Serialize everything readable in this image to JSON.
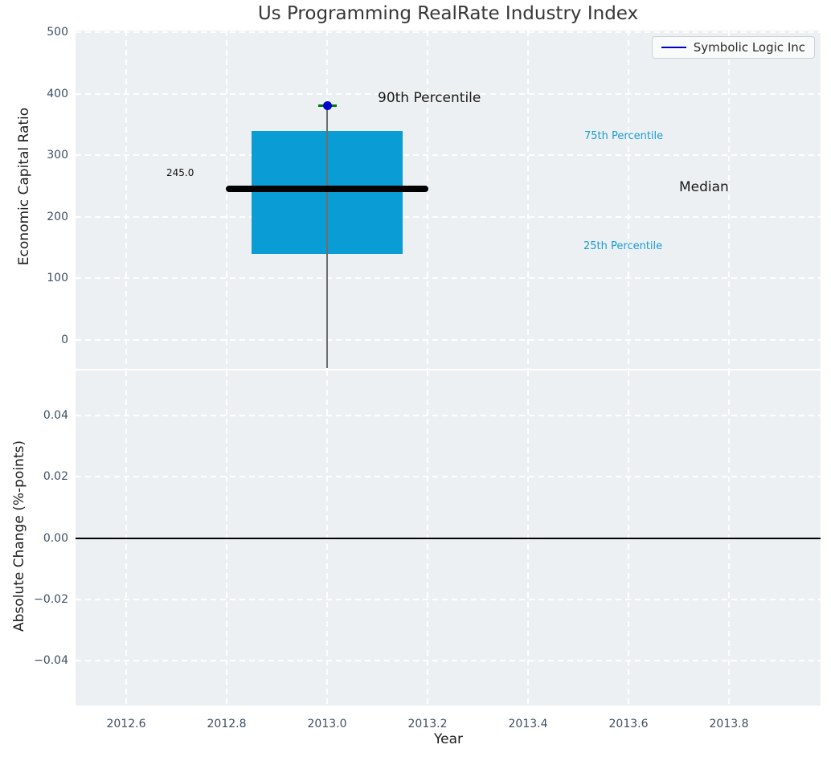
{
  "title": "Us Programming RealRate Industry Index",
  "legend": {
    "label": "Symbolic Logic Inc",
    "line_color": "#0000cc"
  },
  "top_axes": {
    "ylabel": "Economic Capital Ratio",
    "yticks": [
      {
        "label": "500",
        "value": 500
      },
      {
        "label": "400",
        "value": 400
      },
      {
        "label": "300",
        "value": 300
      },
      {
        "label": "200",
        "value": 200
      },
      {
        "label": "100",
        "value": 100
      },
      {
        "label": "0",
        "value": 0
      }
    ],
    "annotations": {
      "p90": "90th Percentile",
      "p75": "75th Percentile",
      "median": "Median",
      "p25": "25th Percentile",
      "median_value": "245.0"
    }
  },
  "bottom_axes": {
    "ylabel": "Absolute Change (%-points)",
    "yticks": [
      {
        "label": "0.04",
        "value": 0.04
      },
      {
        "label": "0.02",
        "value": 0.02
      },
      {
        "label": "0.00",
        "value": 0.0
      },
      {
        "label": "−0.02",
        "value": -0.02
      },
      {
        "label": "−0.04",
        "value": -0.04
      }
    ]
  },
  "x_axis": {
    "label": "Year",
    "ticks": [
      {
        "label": "2012.6",
        "value": 2012.6
      },
      {
        "label": "2012.8",
        "value": 2012.8
      },
      {
        "label": "2013.0",
        "value": 2013.0
      },
      {
        "label": "2013.2",
        "value": 2013.2
      },
      {
        "label": "2013.4",
        "value": 2013.4
      },
      {
        "label": "2013.6",
        "value": 2013.6
      },
      {
        "label": "2013.8",
        "value": 2013.8
      }
    ]
  },
  "colors": {
    "plot_bg": "#edf0f2",
    "grid": "#ffffff",
    "box_fill": "#0a9dd5",
    "percentile_text": "#1a9cd5",
    "series_line": "#0000cc",
    "p90_crossbar": "#007a00",
    "whisker": "#6e6e6e",
    "median_line": "#000000",
    "tick_text": "#3e4e63"
  },
  "chart_data": {
    "type": "box",
    "title": "Us Programming RealRate Industry Index",
    "series": [
      {
        "name": "Symbolic Logic Inc",
        "x": 2013.0,
        "p25": 140,
        "median": 245,
        "p75": 339,
        "p90": 381,
        "median_label": "245.0"
      }
    ],
    "top_panel": {
      "ylabel": "Economic Capital Ratio",
      "ylim": [
        -48,
        503
      ],
      "yticks": [
        500,
        400,
        300,
        200,
        100,
        0
      ],
      "grid": true
    },
    "bottom_panel": {
      "ylabel": "Absolute Change (%-points)",
      "ylim": [
        -0.055,
        0.055
      ],
      "yticks": [
        0.04,
        0.02,
        0.0,
        -0.02,
        -0.04
      ],
      "zero_line": 0.0,
      "grid": true
    },
    "xlabel": "Year",
    "xlim": [
      2012.5,
      2013.99
    ],
    "xticks": [
      2012.6,
      2012.8,
      2013.0,
      2013.2,
      2013.4,
      2013.6,
      2013.8
    ],
    "legend_position": "upper right"
  }
}
